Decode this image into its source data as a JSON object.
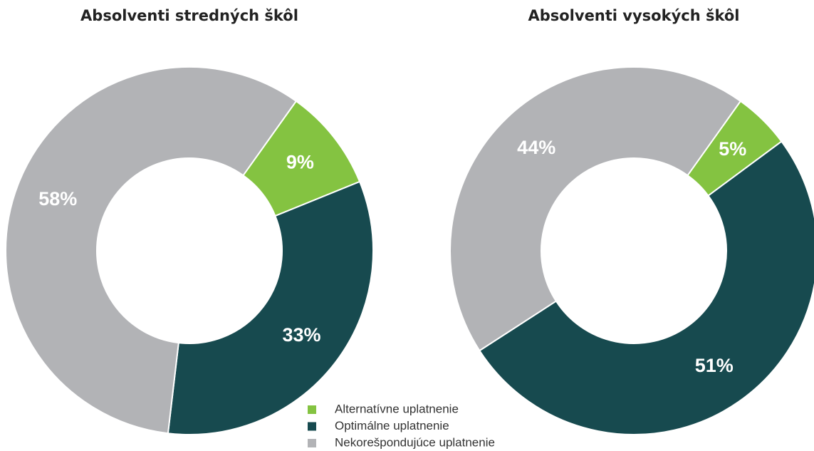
{
  "legend": {
    "labels": [
      "Alternatívne uplatnenie",
      "Optimálne uplatnenie",
      "Nekorešpondujúce uplatnenie"
    ],
    "colors": [
      "#84c341",
      "#174a4f",
      "#b2b3b6"
    ]
  },
  "chart_data": [
    {
      "type": "donut",
      "title": "Absolventi stredných škôl",
      "values": [
        9,
        33,
        58
      ],
      "value_labels": [
        "9%",
        "33%",
        "58%"
      ]
    },
    {
      "type": "donut",
      "title": "Absolventi vysokých škôl",
      "values": [
        5,
        51,
        44
      ],
      "value_labels": [
        "5%",
        "51%",
        "44%"
      ]
    }
  ]
}
